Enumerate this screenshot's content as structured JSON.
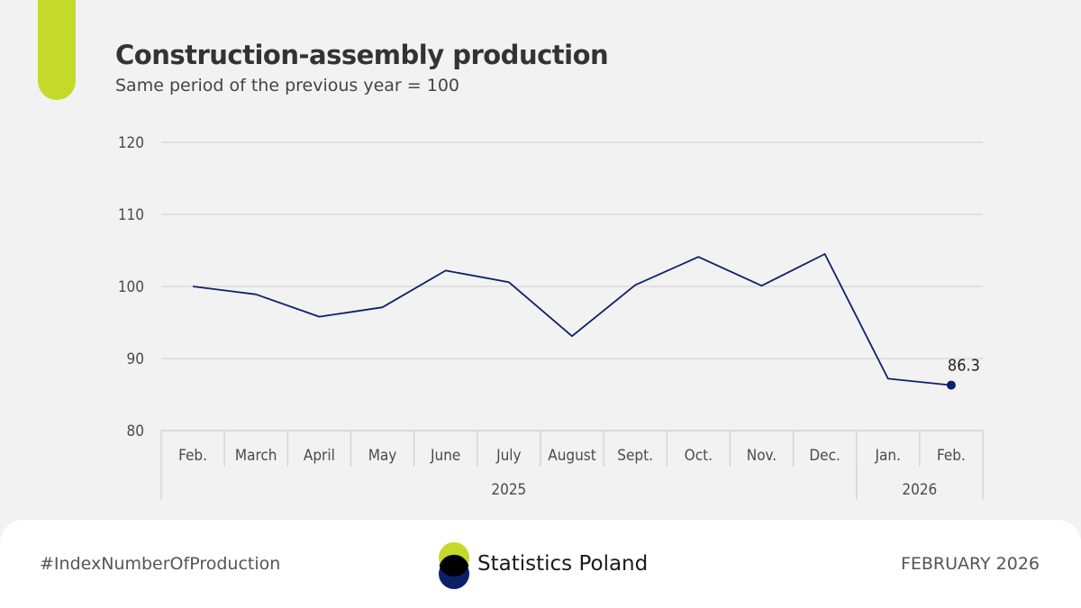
{
  "header": {
    "title": "Construction-assembly production",
    "subtitle": "Same period of the previous year = 100"
  },
  "chart_data": {
    "type": "line",
    "title": "Construction-assembly production",
    "subtitle": "Same period of the previous year = 100",
    "categories": [
      "Feb.",
      "March",
      "April",
      "May",
      "June",
      "July",
      "August",
      "Sept.",
      "Oct.",
      "Nov.",
      "Dec.",
      "Jan.",
      "Feb."
    ],
    "groups": [
      {
        "label": "2025",
        "count": 11
      },
      {
        "label": "2026",
        "count": 2
      }
    ],
    "series": [
      {
        "values": [
          100.0,
          98.9,
          95.8,
          97.1,
          102.2,
          100.6,
          93.1,
          100.2,
          104.1,
          100.1,
          104.5,
          87.2,
          86.3
        ]
      }
    ],
    "ylim": [
      80,
      120
    ],
    "yticks": [
      80,
      90,
      100,
      110,
      120
    ],
    "grid": true,
    "annotation": {
      "index": 12,
      "text": "86.3"
    },
    "colors": {
      "line": "#0c1f6b",
      "grid": "#d9d9d9",
      "axis_text": "#4a4a4a",
      "accent": "#c5d92a",
      "navy": "#0c1f6b"
    }
  },
  "footer": {
    "hashtag": "#IndexNumberOfProduction",
    "brand_name": "Statistics Poland",
    "date_label": "FEBRUARY 2026"
  }
}
